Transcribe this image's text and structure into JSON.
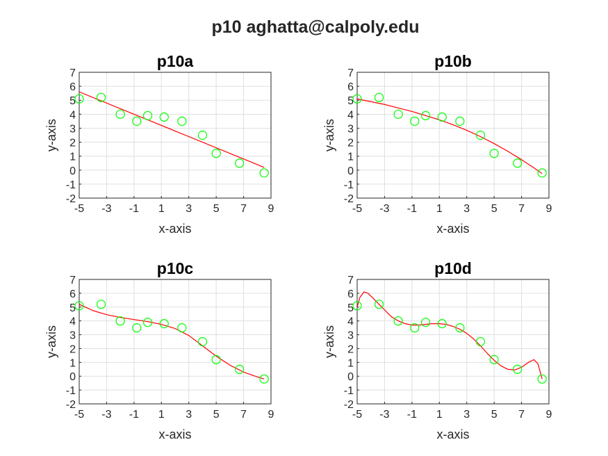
{
  "figure": {
    "title": "p10 aghatta@calpoly.edu"
  },
  "chart_data": [
    {
      "type": "scatter",
      "title": "p10a",
      "xlabel": "x-axis",
      "ylabel": "y-axis",
      "xlim": [
        -5,
        9
      ],
      "ylim": [
        -2,
        7
      ],
      "xticks": [
        -5,
        -3,
        -1,
        1,
        3,
        5,
        7,
        9
      ],
      "yticks": [
        -2,
        -1,
        0,
        1,
        2,
        3,
        4,
        5,
        6,
        7
      ],
      "grid": true,
      "points": {
        "x": [
          -5,
          -3.4,
          -2,
          -0.8,
          0,
          1.2,
          2.5,
          4,
          5,
          6.7,
          8.5
        ],
        "y": [
          5.1,
          5.2,
          4.0,
          3.5,
          3.9,
          3.8,
          3.5,
          2.5,
          1.2,
          0.5,
          -0.2
        ]
      },
      "fit_curve": {
        "x": [
          -5,
          8.5
        ],
        "y": [
          5.6,
          0.2
        ]
      },
      "colors": {
        "points": "#00ff00",
        "fit": "#ff0000"
      }
    },
    {
      "type": "scatter",
      "title": "p10b",
      "xlabel": "x-axis",
      "ylabel": "y-axis",
      "xlim": [
        -5,
        9
      ],
      "ylim": [
        -2,
        7
      ],
      "xticks": [
        -5,
        -3,
        -1,
        1,
        3,
        5,
        7,
        9
      ],
      "yticks": [
        -2,
        -1,
        0,
        1,
        2,
        3,
        4,
        5,
        6,
        7
      ],
      "grid": true,
      "points": {
        "x": [
          -5,
          -3.4,
          -2,
          -0.8,
          0,
          1.2,
          2.5,
          4,
          5,
          6.7,
          8.5
        ],
        "y": [
          5.1,
          5.2,
          4.0,
          3.5,
          3.9,
          3.8,
          3.5,
          2.5,
          1.2,
          0.5,
          -0.2
        ]
      },
      "fit_curve": {
        "x": [
          -5,
          -4,
          -3,
          -2,
          -1,
          0,
          1,
          2,
          3,
          4,
          5,
          6,
          7,
          8,
          8.5
        ],
        "y": [
          5.1,
          4.9,
          4.7,
          4.45,
          4.2,
          3.9,
          3.6,
          3.25,
          2.85,
          2.4,
          1.9,
          1.35,
          0.75,
          0.1,
          -0.25
        ]
      },
      "colors": {
        "points": "#00ff00",
        "fit": "#ff0000"
      }
    },
    {
      "type": "scatter",
      "title": "p10c",
      "xlabel": "x-axis",
      "ylabel": "y-axis",
      "xlim": [
        -5,
        9
      ],
      "ylim": [
        -2,
        7
      ],
      "xticks": [
        -5,
        -3,
        -1,
        1,
        3,
        5,
        7,
        9
      ],
      "yticks": [
        -2,
        -1,
        0,
        1,
        2,
        3,
        4,
        5,
        6,
        7
      ],
      "grid": true,
      "points": {
        "x": [
          -5,
          -3.4,
          -2,
          -0.8,
          0,
          1.2,
          2.5,
          4,
          5,
          6.7,
          8.5
        ],
        "y": [
          5.1,
          5.2,
          4.0,
          3.5,
          3.9,
          3.8,
          3.5,
          2.5,
          1.2,
          0.5,
          -0.2
        ]
      },
      "fit_curve": {
        "x": [
          -5,
          -4,
          -3,
          -2,
          -1,
          0,
          1,
          2,
          3,
          4,
          5,
          6,
          7,
          8,
          8.5
        ],
        "y": [
          5.2,
          4.75,
          4.45,
          4.25,
          4.1,
          3.95,
          3.75,
          3.45,
          2.95,
          2.2,
          1.45,
          0.8,
          0.3,
          -0.05,
          -0.2
        ]
      },
      "colors": {
        "points": "#00ff00",
        "fit": "#ff0000"
      }
    },
    {
      "type": "scatter",
      "title": "p10d",
      "xlabel": "x-axis",
      "ylabel": "y-axis",
      "xlim": [
        -5,
        9
      ],
      "ylim": [
        -2,
        7
      ],
      "xticks": [
        -5,
        -3,
        -1,
        1,
        3,
        5,
        7,
        9
      ],
      "yticks": [
        -2,
        -1,
        0,
        1,
        2,
        3,
        4,
        5,
        6,
        7
      ],
      "grid": true,
      "points": {
        "x": [
          -5,
          -3.4,
          -2,
          -0.8,
          0,
          1.2,
          2.5,
          4,
          5,
          6.7,
          8.5
        ],
        "y": [
          5.1,
          5.2,
          4.0,
          3.5,
          3.9,
          3.8,
          3.5,
          2.5,
          1.2,
          0.5,
          -0.2
        ]
      },
      "fit_curve": {
        "x": [
          -5,
          -4.8,
          -4.5,
          -4.2,
          -3.8,
          -3.4,
          -3,
          -2.5,
          -2,
          -1.5,
          -1,
          -0.5,
          0,
          0.5,
          1,
          1.5,
          2,
          2.5,
          3,
          3.5,
          4,
          4.5,
          5,
          5.5,
          6,
          6.5,
          7,
          7.5,
          7.9,
          8.2,
          8.5
        ],
        "y": [
          5.0,
          5.7,
          6.1,
          6.0,
          5.6,
          5.2,
          4.8,
          4.3,
          4.0,
          3.8,
          3.7,
          3.7,
          3.75,
          3.8,
          3.8,
          3.75,
          3.6,
          3.4,
          3.1,
          2.7,
          2.2,
          1.65,
          1.15,
          0.75,
          0.5,
          0.45,
          0.65,
          1.0,
          1.2,
          0.9,
          -0.2
        ]
      },
      "colors": {
        "points": "#00ff00",
        "fit": "#ff0000"
      }
    }
  ]
}
